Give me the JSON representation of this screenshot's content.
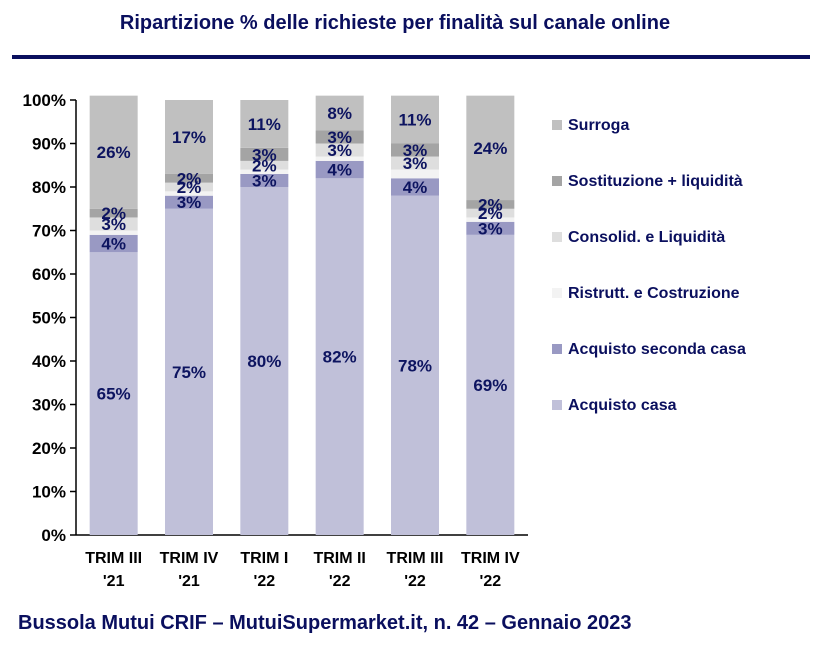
{
  "header": {
    "title": "Ripartizione %  delle richieste per finalità sul canale online"
  },
  "footer": {
    "text": "Bussola Mutui CRIF – MutuiSupermarket.it, n. 42 – Gennaio 2023"
  },
  "colors": {
    "Acquisto casa": "#c0c0d9",
    "Acquisto seconda casa": "#9999c3",
    "Ristrutt. e Costruzione": "#f3f3f3",
    "Consolid. e Liquidità": "#dedede",
    "Sostituzione + liquidità": "#a4a4a4",
    "Surroga": "#c0c0c0"
  },
  "chart_data": {
    "type": "bar",
    "stacked": true,
    "categories": [
      "TRIM III '21",
      "TRIM IV '21",
      "TRIM I '22",
      "TRIM II '22",
      "TRIM III '22",
      "TRIM IV '22"
    ],
    "category_lines": [
      [
        "TRIM III",
        "'21"
      ],
      [
        "TRIM IV",
        "'21"
      ],
      [
        "TRIM I",
        "'22"
      ],
      [
        "TRIM II",
        "'22"
      ],
      [
        "TRIM III",
        "'22"
      ],
      [
        "TRIM IV",
        "'22"
      ]
    ],
    "series": [
      {
        "name": "Acquisto casa",
        "values": [
          65,
          75,
          80,
          82,
          78,
          69
        ],
        "labels": [
          "65%",
          "75%",
          "80%",
          "82%",
          "78%",
          "69%"
        ]
      },
      {
        "name": "Acquisto seconda casa",
        "values": [
          4,
          3,
          3,
          4,
          4,
          3
        ],
        "labels": [
          "4%",
          "3%",
          "3%",
          "4%",
          "4%",
          "3%"
        ]
      },
      {
        "name": "Ristrutt. e Costruzione",
        "values": [
          1,
          1,
          1,
          1,
          2,
          1
        ],
        "labels": [
          "",
          "",
          "",
          "",
          "",
          ""
        ]
      },
      {
        "name": "Consolid. e Liquidità",
        "values": [
          3,
          2,
          2,
          3,
          3,
          2
        ],
        "labels": [
          "3%",
          "2%",
          "2%",
          "3%",
          "3%",
          "2%"
        ]
      },
      {
        "name": "Sostituzione + liquidità",
        "values": [
          2,
          2,
          3,
          3,
          3,
          2
        ],
        "labels": [
          "2%",
          "2%",
          "3%",
          "3%",
          "3%",
          "2%"
        ]
      },
      {
        "name": "Surroga",
        "values": [
          26,
          17,
          11,
          8,
          11,
          24
        ],
        "labels": [
          "26%",
          "17%",
          "11%",
          "8%",
          "11%",
          "24%"
        ]
      }
    ],
    "legend_order": [
      "Surroga",
      "Sostituzione + liquidità",
      "Consolid. e Liquidità",
      "Ristrutt. e Costruzione",
      "Acquisto seconda casa",
      "Acquisto casa"
    ],
    "yticks": [
      "0%",
      "10%",
      "20%",
      "30%",
      "40%",
      "50%",
      "60%",
      "70%",
      "80%",
      "90%",
      "100%"
    ],
    "ylim": [
      0,
      100
    ],
    "legend_position": "right",
    "grid": false
  }
}
